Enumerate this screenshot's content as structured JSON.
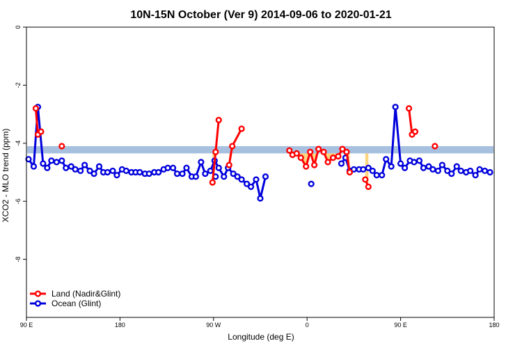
{
  "chart_data": {
    "type": "line",
    "title": "10N-15N October (Ver 9)   2014-09-06 to 2020-01-21",
    "xlabel": "Longitude (deg E)",
    "ylabel": "XCO2 - MLO trend (ppm)",
    "xlim": [
      90,
      540
    ],
    "ylim": [
      -10,
      0
    ],
    "x_ticks": [
      {
        "value": 90,
        "label": "90 E"
      },
      {
        "value": 180,
        "label": "180"
      },
      {
        "value": 270,
        "label": "90 W"
      },
      {
        "value": 360,
        "label": "0"
      },
      {
        "value": 450,
        "label": "90 E"
      },
      {
        "value": 540,
        "label": "180"
      }
    ],
    "y_ticks": [
      {
        "value": 0,
        "label": "0"
      },
      {
        "value": -2,
        "label": "-2"
      },
      {
        "value": -4,
        "label": "-4"
      },
      {
        "value": -6,
        "label": "-6"
      },
      {
        "value": -8,
        "label": "-8"
      }
    ],
    "grid": false,
    "legend_position": "bottom-left",
    "reference_band": {
      "y_low": -4.35,
      "y_high": -4.1,
      "color": "#a8c0e0"
    },
    "land_fill_color": "#ffd580",
    "series": [
      {
        "name": "Land (Nadir&Glint)",
        "color": "#ff0000",
        "segments": [
          [
            {
              "x": 99,
              "y": -2.8
            },
            {
              "x": 101,
              "y": -3.7
            },
            {
              "x": 104,
              "y": -3.6
            }
          ],
          [
            {
              "x": 124,
              "y": -4.1
            }
          ],
          [
            {
              "x": 269,
              "y": -5.35
            },
            {
              "x": 272,
              "y": -4.3
            },
            {
              "x": 275,
              "y": -3.2
            }
          ],
          [
            {
              "x": 285,
              "y": -4.75
            },
            {
              "x": 288,
              "y": -4.1
            },
            {
              "x": 297,
              "y": -3.5
            }
          ],
          [
            {
              "x": 343,
              "y": -4.25
            },
            {
              "x": 346,
              "y": -4.4
            },
            {
              "x": 350,
              "y": -4.35
            },
            {
              "x": 354,
              "y": -4.5
            },
            {
              "x": 359,
              "y": -4.8
            },
            {
              "x": 363,
              "y": -4.3
            },
            {
              "x": 367,
              "y": -4.75
            },
            {
              "x": 371,
              "y": -4.2
            },
            {
              "x": 376,
              "y": -4.3
            },
            {
              "x": 380,
              "y": -4.65
            },
            {
              "x": 385,
              "y": -4.5
            },
            {
              "x": 390,
              "y": -4.45
            },
            {
              "x": 394,
              "y": -4.2
            },
            {
              "x": 398,
              "y": -4.3
            },
            {
              "x": 401,
              "y": -5.0
            }
          ],
          [
            {
              "x": 416,
              "y": -5.25
            },
            {
              "x": 419,
              "y": -5.5
            }
          ],
          [
            {
              "x": 458,
              "y": -2.8
            },
            {
              "x": 461,
              "y": -3.7
            },
            {
              "x": 464,
              "y": -3.6
            }
          ],
          [
            {
              "x": 483,
              "y": -4.1
            }
          ]
        ]
      },
      {
        "name": "Ocean (Glint)",
        "color": "#0000dd",
        "segments": [
          [
            {
              "x": 92,
              "y": -4.55
            },
            {
              "x": 97,
              "y": -4.8
            },
            {
              "x": 101,
              "y": -2.75
            },
            {
              "x": 106,
              "y": -4.7
            },
            {
              "x": 110,
              "y": -4.85
            },
            {
              "x": 114,
              "y": -4.6
            },
            {
              "x": 119,
              "y": -4.65
            },
            {
              "x": 124,
              "y": -4.6
            },
            {
              "x": 128,
              "y": -4.85
            },
            {
              "x": 133,
              "y": -4.8
            },
            {
              "x": 137,
              "y": -4.9
            },
            {
              "x": 142,
              "y": -4.95
            },
            {
              "x": 146,
              "y": -4.75
            },
            {
              "x": 151,
              "y": -4.95
            },
            {
              "x": 155,
              "y": -5.05
            },
            {
              "x": 160,
              "y": -4.8
            },
            {
              "x": 164,
              "y": -5.0
            },
            {
              "x": 168,
              "y": -5.0
            },
            {
              "x": 173,
              "y": -4.95
            },
            {
              "x": 177,
              "y": -5.1
            },
            {
              "x": 182,
              "y": -4.9
            },
            {
              "x": 186,
              "y": -4.95
            },
            {
              "x": 191,
              "y": -5.0
            },
            {
              "x": 195,
              "y": -5.0
            },
            {
              "x": 199,
              "y": -5.0
            },
            {
              "x": 204,
              "y": -5.05
            },
            {
              "x": 208,
              "y": -5.05
            },
            {
              "x": 213,
              "y": -5.0
            },
            {
              "x": 217,
              "y": -5.0
            },
            {
              "x": 222,
              "y": -4.9
            },
            {
              "x": 226,
              "y": -4.85
            },
            {
              "x": 231,
              "y": -4.85
            },
            {
              "x": 235,
              "y": -5.05
            },
            {
              "x": 240,
              "y": -5.05
            },
            {
              "x": 244,
              "y": -4.85
            },
            {
              "x": 249,
              "y": -5.15
            },
            {
              "x": 253,
              "y": -5.15
            },
            {
              "x": 258,
              "y": -4.65
            },
            {
              "x": 262,
              "y": -5.05
            },
            {
              "x": 267,
              "y": -4.95
            },
            {
              "x": 271,
              "y": -4.6
            },
            {
              "x": 275,
              "y": -4.85
            },
            {
              "x": 280,
              "y": -5.15
            },
            {
              "x": 284,
              "y": -4.85
            },
            {
              "x": 289,
              "y": -5.05
            },
            {
              "x": 293,
              "y": -5.15
            },
            {
              "x": 297,
              "y": -5.25
            },
            {
              "x": 302,
              "y": -5.4
            },
            {
              "x": 306,
              "y": -5.5
            },
            {
              "x": 311,
              "y": -5.25
            },
            {
              "x": 315,
              "y": -5.9
            },
            {
              "x": 320,
              "y": -5.15
            }
          ],
          [
            {
              "x": 272,
              "y": -5.15
            }
          ],
          [
            {
              "x": 364,
              "y": -5.4
            }
          ],
          [
            {
              "x": 393,
              "y": -4.7
            },
            {
              "x": 397,
              "y": -4.5
            },
            {
              "x": 401,
              "y": -4.95
            },
            {
              "x": 405,
              "y": -4.9
            },
            {
              "x": 410,
              "y": -4.9
            },
            {
              "x": 414,
              "y": -4.9
            },
            {
              "x": 419,
              "y": -4.85
            },
            {
              "x": 423,
              "y": -4.95
            },
            {
              "x": 427,
              "y": -5.1
            },
            {
              "x": 432,
              "y": -5.1
            },
            {
              "x": 436,
              "y": -4.55
            },
            {
              "x": 441,
              "y": -4.8
            },
            {
              "x": 445,
              "y": -2.75
            },
            {
              "x": 450,
              "y": -4.7
            },
            {
              "x": 454,
              "y": -4.85
            },
            {
              "x": 459,
              "y": -4.6
            },
            {
              "x": 463,
              "y": -4.65
            },
            {
              "x": 468,
              "y": -4.6
            },
            {
              "x": 472,
              "y": -4.85
            },
            {
              "x": 477,
              "y": -4.8
            },
            {
              "x": 481,
              "y": -4.9
            },
            {
              "x": 486,
              "y": -4.95
            },
            {
              "x": 490,
              "y": -4.75
            },
            {
              "x": 495,
              "y": -4.95
            },
            {
              "x": 499,
              "y": -5.05
            },
            {
              "x": 504,
              "y": -4.8
            },
            {
              "x": 508,
              "y": -4.95
            },
            {
              "x": 513,
              "y": -5.0
            },
            {
              "x": 517,
              "y": -4.95
            },
            {
              "x": 522,
              "y": -5.1
            },
            {
              "x": 526,
              "y": -4.9
            },
            {
              "x": 531,
              "y": -4.95
            },
            {
              "x": 536,
              "y": -5.0
            }
          ]
        ]
      }
    ]
  }
}
